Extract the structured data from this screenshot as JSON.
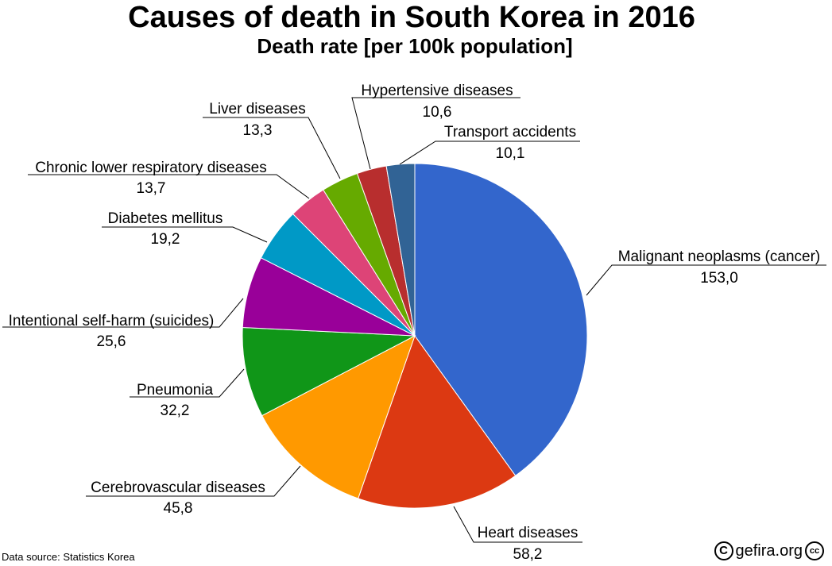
{
  "chart_data": {
    "type": "pie",
    "title": "Causes of death in South Korea in 2016",
    "subtitle": "Death rate [per 100k population]",
    "slices": [
      {
        "label": "Malignant neoplasms (cancer)",
        "value": 153.0,
        "value_text": "153,0",
        "color": "#3366cc"
      },
      {
        "label": "Heart diseases",
        "value": 58.2,
        "value_text": "58,2",
        "color": "#dc3912"
      },
      {
        "label": "Cerebrovascular diseases",
        "value": 45.8,
        "value_text": "45,8",
        "color": "#ff9900"
      },
      {
        "label": "Pneumonia",
        "value": 32.2,
        "value_text": "32,2",
        "color": "#109618"
      },
      {
        "label": "Intentional self-harm (suicides)",
        "value": 25.6,
        "value_text": "25,6",
        "color": "#990099"
      },
      {
        "label": "Diabetes mellitus",
        "value": 19.2,
        "value_text": "19,2",
        "color": "#0099c6"
      },
      {
        "label": "Chronic lower respiratory diseases",
        "value": 13.7,
        "value_text": "13,7",
        "color": "#dd4477"
      },
      {
        "label": "Liver diseases",
        "value": 13.3,
        "value_text": "13,3",
        "color": "#66aa00"
      },
      {
        "label": "Hypertensive diseases",
        "value": 10.6,
        "value_text": "10,6",
        "color": "#b82e2e"
      },
      {
        "label": "Transport accidents",
        "value": 10.1,
        "value_text": "10,1",
        "color": "#316395"
      }
    ]
  },
  "footer": {
    "source": "Data source: Statistics Korea",
    "credit": "gefira.org",
    "copyright_symbol": "C",
    "cc_badge": "cc"
  }
}
